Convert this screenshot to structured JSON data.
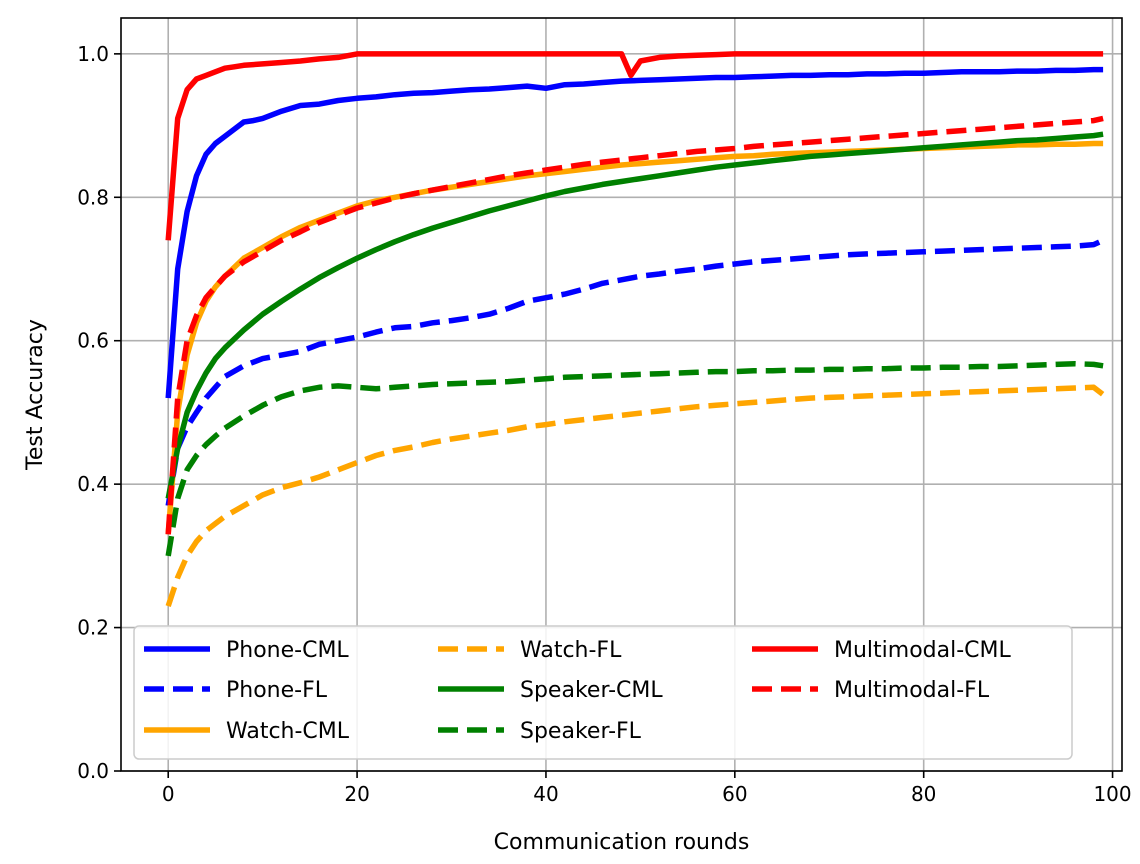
{
  "chart_data": {
    "type": "line",
    "xlabel": "Communication rounds",
    "ylabel": "Test Accuracy",
    "xlim": [
      -5,
      101
    ],
    "ylim": [
      0.0,
      1.05
    ],
    "xticks": [
      0,
      20,
      40,
      60,
      80,
      100
    ],
    "xtick_labels": [
      "0",
      "20",
      "40",
      "60",
      "80",
      "100"
    ],
    "yticks": [
      0.0,
      0.2,
      0.4,
      0.6,
      0.8,
      1.0
    ],
    "ytick_labels": [
      "0.0",
      "0.2",
      "0.4",
      "0.6",
      "0.8",
      "1.0"
    ],
    "grid": true,
    "legend_position": "lower center",
    "series": [
      {
        "name": "Phone-CML",
        "color": "#0000ff",
        "dash": "solid",
        "x": [
          0,
          1,
          2,
          3,
          4,
          5,
          6,
          7,
          8,
          9,
          10,
          12,
          14,
          16,
          18,
          20,
          22,
          24,
          26,
          28,
          30,
          32,
          34,
          36,
          38,
          40,
          42,
          44,
          46,
          48,
          50,
          52,
          54,
          56,
          58,
          60,
          62,
          64,
          66,
          68,
          70,
          72,
          74,
          76,
          78,
          80,
          82,
          84,
          86,
          88,
          90,
          92,
          94,
          96,
          98,
          99
        ],
        "y": [
          0.52,
          0.7,
          0.78,
          0.83,
          0.86,
          0.875,
          0.885,
          0.895,
          0.905,
          0.907,
          0.91,
          0.92,
          0.928,
          0.93,
          0.935,
          0.938,
          0.94,
          0.943,
          0.945,
          0.946,
          0.948,
          0.95,
          0.951,
          0.953,
          0.955,
          0.952,
          0.957,
          0.958,
          0.96,
          0.962,
          0.963,
          0.964,
          0.965,
          0.966,
          0.967,
          0.967,
          0.968,
          0.969,
          0.97,
          0.97,
          0.971,
          0.971,
          0.972,
          0.972,
          0.973,
          0.973,
          0.974,
          0.975,
          0.975,
          0.975,
          0.976,
          0.976,
          0.977,
          0.977,
          0.978,
          0.978
        ]
      },
      {
        "name": "Phone-FL",
        "color": "#0000ff",
        "dash": "dashed",
        "x": [
          0,
          1,
          2,
          3,
          4,
          5,
          6,
          8,
          10,
          12,
          14,
          16,
          18,
          20,
          22,
          24,
          26,
          28,
          30,
          32,
          34,
          36,
          38,
          40,
          42,
          44,
          46,
          48,
          50,
          52,
          54,
          56,
          58,
          60,
          62,
          64,
          66,
          68,
          70,
          72,
          74,
          76,
          78,
          80,
          82,
          84,
          86,
          88,
          90,
          92,
          94,
          96,
          98,
          99
        ],
        "y": [
          0.37,
          0.45,
          0.48,
          0.5,
          0.52,
          0.535,
          0.55,
          0.565,
          0.575,
          0.58,
          0.585,
          0.595,
          0.6,
          0.605,
          0.612,
          0.618,
          0.62,
          0.625,
          0.628,
          0.632,
          0.637,
          0.645,
          0.655,
          0.66,
          0.665,
          0.672,
          0.68,
          0.685,
          0.69,
          0.693,
          0.697,
          0.7,
          0.704,
          0.707,
          0.71,
          0.712,
          0.714,
          0.716,
          0.718,
          0.72,
          0.721,
          0.722,
          0.723,
          0.724,
          0.725,
          0.726,
          0.727,
          0.728,
          0.729,
          0.73,
          0.731,
          0.732,
          0.734,
          0.74
        ]
      },
      {
        "name": "Watch-CML",
        "color": "#ffa500",
        "dash": "solid",
        "x": [
          0,
          1,
          2,
          3,
          4,
          5,
          6,
          8,
          10,
          12,
          14,
          16,
          18,
          20,
          22,
          24,
          26,
          28,
          30,
          32,
          34,
          36,
          38,
          40,
          42,
          44,
          46,
          48,
          50,
          52,
          54,
          56,
          58,
          60,
          62,
          64,
          66,
          68,
          70,
          72,
          74,
          76,
          78,
          80,
          82,
          84,
          86,
          88,
          90,
          92,
          94,
          96,
          98,
          99
        ],
        "y": [
          0.33,
          0.5,
          0.58,
          0.625,
          0.655,
          0.675,
          0.69,
          0.715,
          0.73,
          0.745,
          0.758,
          0.768,
          0.778,
          0.788,
          0.795,
          0.8,
          0.805,
          0.81,
          0.814,
          0.818,
          0.822,
          0.826,
          0.83,
          0.833,
          0.836,
          0.839,
          0.842,
          0.845,
          0.847,
          0.849,
          0.851,
          0.853,
          0.855,
          0.857,
          0.858,
          0.86,
          0.861,
          0.862,
          0.863,
          0.864,
          0.865,
          0.866,
          0.867,
          0.868,
          0.869,
          0.87,
          0.871,
          0.872,
          0.873,
          0.873,
          0.874,
          0.874,
          0.875,
          0.875
        ]
      },
      {
        "name": "Watch-FL",
        "color": "#ffa500",
        "dash": "dashed",
        "x": [
          0,
          1,
          2,
          3,
          4,
          5,
          6,
          8,
          10,
          12,
          14,
          16,
          18,
          20,
          22,
          24,
          26,
          28,
          30,
          32,
          34,
          36,
          38,
          40,
          42,
          44,
          46,
          48,
          50,
          52,
          54,
          56,
          58,
          60,
          62,
          64,
          66,
          68,
          70,
          72,
          74,
          76,
          78,
          80,
          82,
          84,
          86,
          88,
          90,
          92,
          94,
          96,
          98,
          99
        ],
        "y": [
          0.23,
          0.27,
          0.3,
          0.32,
          0.335,
          0.345,
          0.355,
          0.37,
          0.385,
          0.395,
          0.402,
          0.41,
          0.42,
          0.43,
          0.44,
          0.447,
          0.452,
          0.458,
          0.463,
          0.467,
          0.471,
          0.475,
          0.48,
          0.483,
          0.487,
          0.49,
          0.493,
          0.496,
          0.499,
          0.502,
          0.505,
          0.508,
          0.51,
          0.512,
          0.514,
          0.516,
          0.518,
          0.52,
          0.521,
          0.522,
          0.523,
          0.524,
          0.525,
          0.526,
          0.527,
          0.528,
          0.529,
          0.53,
          0.531,
          0.532,
          0.533,
          0.534,
          0.535,
          0.525
        ]
      },
      {
        "name": "Speaker-CML",
        "color": "#008000",
        "dash": "solid",
        "x": [
          0,
          1,
          2,
          3,
          4,
          5,
          6,
          8,
          10,
          12,
          14,
          16,
          18,
          20,
          22,
          24,
          26,
          28,
          30,
          32,
          34,
          36,
          38,
          40,
          42,
          44,
          46,
          48,
          50,
          52,
          54,
          56,
          58,
          60,
          62,
          64,
          66,
          68,
          70,
          72,
          74,
          76,
          78,
          80,
          82,
          84,
          86,
          88,
          90,
          92,
          94,
          96,
          98,
          99
        ],
        "y": [
          0.38,
          0.45,
          0.5,
          0.53,
          0.555,
          0.575,
          0.59,
          0.615,
          0.637,
          0.655,
          0.672,
          0.688,
          0.702,
          0.715,
          0.727,
          0.738,
          0.748,
          0.757,
          0.765,
          0.773,
          0.781,
          0.788,
          0.795,
          0.802,
          0.808,
          0.813,
          0.818,
          0.822,
          0.826,
          0.83,
          0.834,
          0.838,
          0.842,
          0.845,
          0.848,
          0.851,
          0.854,
          0.857,
          0.859,
          0.861,
          0.863,
          0.865,
          0.867,
          0.869,
          0.871,
          0.873,
          0.875,
          0.877,
          0.879,
          0.88,
          0.882,
          0.884,
          0.886,
          0.888
        ]
      },
      {
        "name": "Speaker-FL",
        "color": "#008000",
        "dash": "dashed",
        "x": [
          0,
          1,
          2,
          3,
          4,
          5,
          6,
          8,
          10,
          12,
          14,
          16,
          18,
          20,
          22,
          24,
          26,
          28,
          30,
          32,
          34,
          36,
          38,
          40,
          42,
          44,
          46,
          48,
          50,
          52,
          54,
          56,
          58,
          60,
          62,
          64,
          66,
          68,
          70,
          72,
          74,
          76,
          78,
          80,
          82,
          84,
          86,
          88,
          90,
          92,
          94,
          96,
          98,
          99
        ],
        "y": [
          0.3,
          0.38,
          0.42,
          0.44,
          0.455,
          0.467,
          0.478,
          0.495,
          0.51,
          0.522,
          0.53,
          0.535,
          0.537,
          0.535,
          0.533,
          0.535,
          0.537,
          0.539,
          0.54,
          0.541,
          0.542,
          0.543,
          0.545,
          0.547,
          0.549,
          0.55,
          0.551,
          0.552,
          0.553,
          0.554,
          0.555,
          0.556,
          0.557,
          0.557,
          0.558,
          0.558,
          0.559,
          0.559,
          0.56,
          0.56,
          0.561,
          0.561,
          0.562,
          0.562,
          0.563,
          0.563,
          0.564,
          0.564,
          0.565,
          0.566,
          0.567,
          0.568,
          0.567,
          0.565
        ]
      },
      {
        "name": "Multimodal-CML",
        "color": "#ff0000",
        "dash": "solid",
        "x": [
          0,
          1,
          2,
          3,
          4,
          5,
          6,
          7,
          8,
          10,
          12,
          14,
          16,
          18,
          20,
          22,
          24,
          26,
          28,
          30,
          32,
          34,
          36,
          38,
          40,
          42,
          44,
          46,
          48,
          49,
          50,
          52,
          54,
          56,
          58,
          60,
          62,
          64,
          66,
          68,
          70,
          72,
          74,
          76,
          78,
          80,
          82,
          84,
          86,
          88,
          90,
          92,
          94,
          96,
          98,
          99
        ],
        "y": [
          0.74,
          0.91,
          0.95,
          0.965,
          0.97,
          0.975,
          0.98,
          0.982,
          0.984,
          0.986,
          0.988,
          0.99,
          0.993,
          0.995,
          1.0,
          1.0,
          1.0,
          1.0,
          1.0,
          1.0,
          1.0,
          1.0,
          1.0,
          1.0,
          1.0,
          1.0,
          1.0,
          1.0,
          1.0,
          0.97,
          0.99,
          0.995,
          0.997,
          0.998,
          0.999,
          1.0,
          1.0,
          1.0,
          1.0,
          1.0,
          1.0,
          1.0,
          1.0,
          1.0,
          1.0,
          1.0,
          1.0,
          1.0,
          1.0,
          1.0,
          1.0,
          1.0,
          1.0,
          1.0,
          1.0,
          1.0
        ]
      },
      {
        "name": "Multimodal-FL",
        "color": "#ff0000",
        "dash": "dashed",
        "x": [
          0,
          1,
          2,
          3,
          4,
          5,
          6,
          8,
          10,
          12,
          14,
          16,
          18,
          20,
          22,
          24,
          26,
          28,
          30,
          32,
          34,
          36,
          38,
          40,
          42,
          44,
          46,
          48,
          50,
          52,
          54,
          56,
          58,
          60,
          62,
          64,
          66,
          68,
          70,
          72,
          74,
          76,
          78,
          80,
          82,
          84,
          86,
          88,
          90,
          92,
          94,
          96,
          98,
          99
        ],
        "y": [
          0.33,
          0.52,
          0.6,
          0.635,
          0.66,
          0.675,
          0.69,
          0.71,
          0.725,
          0.74,
          0.752,
          0.765,
          0.775,
          0.785,
          0.792,
          0.799,
          0.805,
          0.81,
          0.815,
          0.82,
          0.825,
          0.83,
          0.834,
          0.838,
          0.842,
          0.846,
          0.849,
          0.852,
          0.855,
          0.858,
          0.861,
          0.864,
          0.866,
          0.868,
          0.871,
          0.873,
          0.875,
          0.877,
          0.879,
          0.881,
          0.883,
          0.885,
          0.887,
          0.889,
          0.891,
          0.893,
          0.895,
          0.897,
          0.899,
          0.901,
          0.903,
          0.905,
          0.907,
          0.91
        ]
      }
    ]
  }
}
